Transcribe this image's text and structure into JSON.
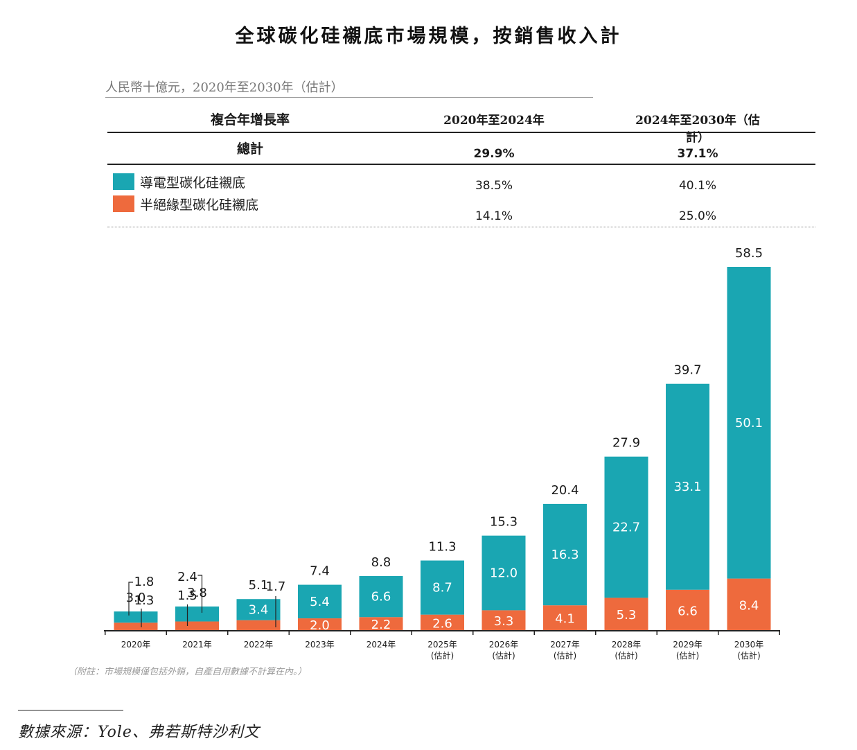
{
  "title": "全球碳化硅襯底市場規模，按銷售收入計",
  "unit_label": "人民幣十億元，2020年至2030年（估計）",
  "cagr_table": {
    "header": [
      "複合年增長率",
      "2020年至2024年",
      "2024年至2030年（估計）"
    ],
    "total": {
      "label": "總計",
      "values": [
        "29.9%",
        "37.1%"
      ]
    },
    "rows": [
      {
        "label": "導電型碳化硅襯底",
        "color": "#1aa6b2",
        "values": [
          "38.5%",
          "40.1%"
        ]
      },
      {
        "label": "半絕緣型碳化硅襯底",
        "color": "#ee6a3d",
        "values": [
          "14.1%",
          "25.0%"
        ]
      }
    ]
  },
  "chart_data": {
    "type": "bar",
    "stacked": true,
    "categories": [
      "2020年",
      "2021年",
      "2022年",
      "2023年",
      "2024年",
      "2025年\n(估計)",
      "2026年\n(估計)",
      "2027年\n(估計)",
      "2028年\n(估計)",
      "2029年\n(估計)",
      "2030年\n(估計)"
    ],
    "series": [
      {
        "name": "半絕緣型碳化硅襯底",
        "color": "#ee6a3d",
        "values": [
          1.3,
          1.5,
          1.7,
          2.0,
          2.2,
          2.6,
          3.3,
          4.1,
          5.3,
          6.6,
          8.4
        ]
      },
      {
        "name": "導電型碳化硅襯底",
        "color": "#1aa6b2",
        "values": [
          1.8,
          2.4,
          3.4,
          5.4,
          6.6,
          8.7,
          12.0,
          16.3,
          22.7,
          33.1,
          50.1
        ]
      }
    ],
    "segment_labels": {
      "semi": [
        "1.3",
        "1.5",
        "1.7",
        "2.0",
        "2.2",
        "2.6",
        "3.3",
        "4.1",
        "5.3",
        "6.6",
        "8.4"
      ],
      "cond": [
        "1.8",
        "2.4",
        "3.4",
        "5.4",
        "6.6",
        "8.7",
        "12.0",
        "16.3",
        "22.7",
        "33.1",
        "50.1"
      ]
    },
    "totals": [
      "3.0",
      "3.8",
      "5.1",
      "7.4",
      "8.8",
      "11.3",
      "15.3",
      "20.4",
      "27.9",
      "39.7",
      "58.5"
    ],
    "ylim": [
      0,
      58.5
    ],
    "xlabel": "",
    "ylabel": ""
  },
  "note": "（附註：市場規模僅包括外銷，自產自用數據不計算在內。）",
  "source": "數據來源：Yole、弗若斯特沙利文"
}
